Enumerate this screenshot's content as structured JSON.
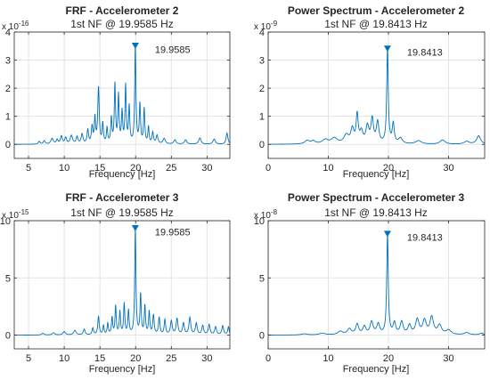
{
  "figure": {
    "background": "#ffffff",
    "line_color": "#0072BD",
    "axis_color": "#262626",
    "grid": true
  },
  "chart_data": [
    {
      "type": "line",
      "title": "FRF - Accelerometer 2",
      "subtitle": "1st NF @ 19.9585 Hz",
      "xlabel": "Frequency [Hz]",
      "ylabel": "",
      "xlim": [
        3,
        33.2
      ],
      "ylim": [
        -0.5,
        4
      ],
      "xticks": [
        5,
        10,
        15,
        20,
        25,
        30
      ],
      "xtick_labels": [
        "5",
        "10",
        "15",
        "20",
        "25",
        "30"
      ],
      "yticks": [
        0,
        1,
        2,
        3,
        4
      ],
      "ytick_labels": [
        "0",
        "1",
        "2",
        "3",
        "4"
      ],
      "y_exponent": "x 10^-16",
      "y_exponent_base": "x 10",
      "y_exponent_power": "-16",
      "baseline": 0,
      "peaks": [
        {
          "x": 6.5,
          "y": 0.1,
          "w": 0.15
        },
        {
          "x": 7.2,
          "y": 0.12,
          "w": 0.15
        },
        {
          "x": 8.3,
          "y": 0.2,
          "w": 0.2
        },
        {
          "x": 9.0,
          "y": 0.15,
          "w": 0.15
        },
        {
          "x": 9.6,
          "y": 0.28,
          "w": 0.15
        },
        {
          "x": 10.2,
          "y": 0.22,
          "w": 0.15
        },
        {
          "x": 11.0,
          "y": 0.3,
          "w": 0.2
        },
        {
          "x": 11.8,
          "y": 0.25,
          "w": 0.15
        },
        {
          "x": 12.5,
          "y": 0.35,
          "w": 0.15
        },
        {
          "x": 13.3,
          "y": 0.5,
          "w": 0.12
        },
        {
          "x": 13.9,
          "y": 0.6,
          "w": 0.12
        },
        {
          "x": 14.3,
          "y": 0.9,
          "w": 0.1
        },
        {
          "x": 14.8,
          "y": 2.0,
          "w": 0.12
        },
        {
          "x": 15.4,
          "y": 0.7,
          "w": 0.1
        },
        {
          "x": 16.0,
          "y": 0.55,
          "w": 0.1
        },
        {
          "x": 16.6,
          "y": 0.9,
          "w": 0.1
        },
        {
          "x": 17.1,
          "y": 2.1,
          "w": 0.1
        },
        {
          "x": 17.6,
          "y": 1.7,
          "w": 0.1
        },
        {
          "x": 18.1,
          "y": 1.1,
          "w": 0.1
        },
        {
          "x": 18.6,
          "y": 2.05,
          "w": 0.1
        },
        {
          "x": 19.1,
          "y": 1.3,
          "w": 0.1
        },
        {
          "x": 19.9585,
          "y": 3.45,
          "w": 0.1
        },
        {
          "x": 20.6,
          "y": 1.4,
          "w": 0.1
        },
        {
          "x": 21.2,
          "y": 1.25,
          "w": 0.1
        },
        {
          "x": 21.8,
          "y": 0.6,
          "w": 0.1
        },
        {
          "x": 22.4,
          "y": 0.4,
          "w": 0.12
        },
        {
          "x": 23.0,
          "y": 0.3,
          "w": 0.15
        },
        {
          "x": 24.0,
          "y": 0.2,
          "w": 0.2
        },
        {
          "x": 25.5,
          "y": 0.15,
          "w": 0.2
        },
        {
          "x": 27.0,
          "y": 0.15,
          "w": 0.2
        },
        {
          "x": 29.0,
          "y": 0.22,
          "w": 0.2
        },
        {
          "x": 31.0,
          "y": 0.18,
          "w": 0.2
        },
        {
          "x": 32.8,
          "y": 0.4,
          "w": 0.15
        }
      ],
      "marker": {
        "x": 19.9585,
        "y": 3.45,
        "label": "19.9585"
      }
    },
    {
      "type": "line",
      "title": "Power Spectrum - Accelerometer 2",
      "subtitle": "1st NF @ 19.8413 Hz",
      "xlabel": "Frequency [Hz]",
      "ylabel": "",
      "xlim": [
        0,
        36
      ],
      "ylim": [
        -0.5,
        4
      ],
      "xticks": [
        0,
        10,
        20,
        30
      ],
      "xtick_labels": [
        "0",
        "10",
        "20",
        "30"
      ],
      "yticks": [
        0,
        1,
        2,
        3,
        4
      ],
      "ytick_labels": [
        "0",
        "1",
        "2",
        "3",
        "4"
      ],
      "y_exponent": "x 10^-9",
      "y_exponent_base": "x 10",
      "y_exponent_power": "-9",
      "baseline": 0,
      "peaks": [
        {
          "x": 6.5,
          "y": 0.12,
          "w": 0.5
        },
        {
          "x": 7.5,
          "y": 0.1,
          "w": 0.4
        },
        {
          "x": 9.5,
          "y": 0.15,
          "w": 0.6
        },
        {
          "x": 11.0,
          "y": 0.2,
          "w": 0.6
        },
        {
          "x": 13.0,
          "y": 0.3,
          "w": 0.5
        },
        {
          "x": 14.0,
          "y": 0.5,
          "w": 0.3
        },
        {
          "x": 14.8,
          "y": 1.0,
          "w": 0.2
        },
        {
          "x": 15.5,
          "y": 0.4,
          "w": 0.3
        },
        {
          "x": 16.5,
          "y": 0.6,
          "w": 0.3
        },
        {
          "x": 17.3,
          "y": 0.85,
          "w": 0.25
        },
        {
          "x": 18.2,
          "y": 0.75,
          "w": 0.25
        },
        {
          "x": 19.8413,
          "y": 3.35,
          "w": 0.15
        },
        {
          "x": 20.8,
          "y": 0.7,
          "w": 0.2
        },
        {
          "x": 22.0,
          "y": 0.2,
          "w": 0.4
        },
        {
          "x": 25.0,
          "y": 0.12,
          "w": 0.6
        },
        {
          "x": 29.0,
          "y": 0.15,
          "w": 0.5
        },
        {
          "x": 33.0,
          "y": 0.1,
          "w": 0.5
        },
        {
          "x": 35.0,
          "y": 0.3,
          "w": 0.4
        }
      ],
      "marker": {
        "x": 19.8413,
        "y": 3.35,
        "label": "19.8413"
      }
    },
    {
      "type": "line",
      "title": "FRF - Accelerometer 3",
      "subtitle": "1st NF @ 19.9585 Hz",
      "xlabel": "Frequency [Hz]",
      "ylabel": "",
      "xlim": [
        3,
        33.2
      ],
      "ylim": [
        -1.2,
        10
      ],
      "xticks": [
        5,
        10,
        15,
        20,
        25,
        30
      ],
      "xtick_labels": [
        "5",
        "10",
        "15",
        "20",
        "25",
        "30"
      ],
      "yticks": [
        0,
        5,
        10
      ],
      "ytick_labels": [
        "0",
        "5",
        "10"
      ],
      "y_exponent": "x 10^-15",
      "y_exponent_base": "x 10",
      "y_exponent_power": "-15",
      "baseline": 0,
      "peaks": [
        {
          "x": 7.0,
          "y": 0.15,
          "w": 0.2
        },
        {
          "x": 8.5,
          "y": 0.2,
          "w": 0.2
        },
        {
          "x": 10.0,
          "y": 0.3,
          "w": 0.2
        },
        {
          "x": 11.5,
          "y": 0.4,
          "w": 0.2
        },
        {
          "x": 12.8,
          "y": 0.5,
          "w": 0.15
        },
        {
          "x": 14.0,
          "y": 0.6,
          "w": 0.12
        },
        {
          "x": 14.8,
          "y": 1.6,
          "w": 0.12
        },
        {
          "x": 15.5,
          "y": 0.8,
          "w": 0.1
        },
        {
          "x": 16.1,
          "y": 1.0,
          "w": 0.1
        },
        {
          "x": 16.7,
          "y": 1.5,
          "w": 0.1
        },
        {
          "x": 17.2,
          "y": 2.5,
          "w": 0.1
        },
        {
          "x": 17.8,
          "y": 2.0,
          "w": 0.1
        },
        {
          "x": 18.4,
          "y": 2.7,
          "w": 0.1
        },
        {
          "x": 19.0,
          "y": 2.1,
          "w": 0.1
        },
        {
          "x": 19.9585,
          "y": 9.2,
          "w": 0.1
        },
        {
          "x": 20.7,
          "y": 3.5,
          "w": 0.1
        },
        {
          "x": 21.3,
          "y": 2.5,
          "w": 0.1
        },
        {
          "x": 21.9,
          "y": 2.0,
          "w": 0.1
        },
        {
          "x": 22.5,
          "y": 1.7,
          "w": 0.12
        },
        {
          "x": 23.3,
          "y": 1.5,
          "w": 0.12
        },
        {
          "x": 24.1,
          "y": 1.3,
          "w": 0.12
        },
        {
          "x": 25.0,
          "y": 1.2,
          "w": 0.15
        },
        {
          "x": 25.8,
          "y": 1.4,
          "w": 0.15
        },
        {
          "x": 26.7,
          "y": 1.0,
          "w": 0.15
        },
        {
          "x": 27.6,
          "y": 1.5,
          "w": 0.15
        },
        {
          "x": 28.5,
          "y": 1.0,
          "w": 0.15
        },
        {
          "x": 29.4,
          "y": 0.8,
          "w": 0.15
        },
        {
          "x": 30.3,
          "y": 0.9,
          "w": 0.15
        },
        {
          "x": 31.2,
          "y": 0.7,
          "w": 0.15
        },
        {
          "x": 32.2,
          "y": 0.8,
          "w": 0.15
        },
        {
          "x": 33.0,
          "y": 0.7,
          "w": 0.12
        }
      ],
      "marker": {
        "x": 19.9585,
        "y": 9.2,
        "label": "19.9585"
      }
    },
    {
      "type": "line",
      "title": "Power Spectrum - Accelerometer 3",
      "subtitle": "1st NF @ 19.8413 Hz",
      "xlabel": "Frequency [Hz]",
      "ylabel": "",
      "xlim": [
        0,
        36
      ],
      "ylim": [
        -1.2,
        10
      ],
      "xticks": [
        0,
        10,
        20,
        30
      ],
      "xtick_labels": [
        "0",
        "10",
        "20",
        "30"
      ],
      "yticks": [
        0,
        5,
        10
      ],
      "ytick_labels": [
        "0",
        "5",
        "10"
      ],
      "y_exponent": "x 10^-8",
      "y_exponent_base": "x 10",
      "y_exponent_power": "-8",
      "baseline": 0,
      "peaks": [
        {
          "x": 6.0,
          "y": 0.1,
          "w": 0.6
        },
        {
          "x": 9.0,
          "y": 0.15,
          "w": 0.6
        },
        {
          "x": 12.0,
          "y": 0.3,
          "w": 0.5
        },
        {
          "x": 13.5,
          "y": 0.5,
          "w": 0.4
        },
        {
          "x": 14.8,
          "y": 0.9,
          "w": 0.3
        },
        {
          "x": 16.0,
          "y": 0.7,
          "w": 0.3
        },
        {
          "x": 17.2,
          "y": 1.1,
          "w": 0.3
        },
        {
          "x": 18.3,
          "y": 0.9,
          "w": 0.3
        },
        {
          "x": 19.8413,
          "y": 8.7,
          "w": 0.15
        },
        {
          "x": 21.0,
          "y": 1.0,
          "w": 0.25
        },
        {
          "x": 22.2,
          "y": 1.1,
          "w": 0.3
        },
        {
          "x": 23.5,
          "y": 0.8,
          "w": 0.3
        },
        {
          "x": 24.8,
          "y": 1.3,
          "w": 0.35
        },
        {
          "x": 26.0,
          "y": 1.2,
          "w": 0.35
        },
        {
          "x": 27.2,
          "y": 1.5,
          "w": 0.35
        },
        {
          "x": 28.5,
          "y": 0.8,
          "w": 0.4
        },
        {
          "x": 30.0,
          "y": 0.4,
          "w": 0.5
        },
        {
          "x": 33.0,
          "y": 0.2,
          "w": 0.5
        },
        {
          "x": 35.5,
          "y": 0.15,
          "w": 0.4
        }
      ],
      "marker": {
        "x": 19.8413,
        "y": 8.7,
        "label": "19.8413"
      }
    }
  ]
}
